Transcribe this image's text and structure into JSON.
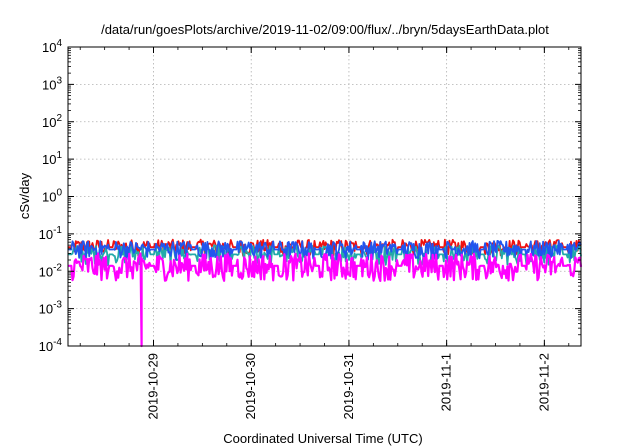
{
  "chart_data": {
    "type": "line",
    "title": "/data/run/goesPlots/archive/2019-11-02/09:00/flux/../bryn/5daysEarthData.plot",
    "xlabel": "Coordinated Universal Time (UTC)",
    "ylabel": "cSv/day",
    "yscale": "log",
    "ylim": [
      0.0001,
      10000
    ],
    "xlim": [
      "2019-10-28 03:00",
      "2019-11-02 09:00"
    ],
    "grid": true,
    "legend": "none",
    "x_ticks": [
      "2019-10-29",
      "2019-10-30",
      "2019-10-31",
      "2019-11-1",
      "2019-11-2"
    ],
    "y_ticks": [
      {
        "base": "10",
        "exp": "-4",
        "value": 0.0001
      },
      {
        "base": "10",
        "exp": "-3",
        "value": 0.001
      },
      {
        "base": "10",
        "exp": "-2",
        "value": 0.01
      },
      {
        "base": "10",
        "exp": "-1",
        "value": 0.1
      },
      {
        "base": "10",
        "exp": "0",
        "value": 1
      },
      {
        "base": "10",
        "exp": "1",
        "value": 10
      },
      {
        "base": "10",
        "exp": "2",
        "value": 100
      },
      {
        "base": "10",
        "exp": "3",
        "value": 1000
      },
      {
        "base": "10",
        "exp": "4",
        "value": 10000
      }
    ],
    "series": [
      {
        "color": "#ee1111",
        "low": 0.025,
        "high": 0.07,
        "dip_time": null
      },
      {
        "color": "#22aaaa",
        "low": 0.014,
        "high": 0.05,
        "dip_time": null
      },
      {
        "color": "#2255ee",
        "low": 0.02,
        "high": 0.065,
        "dip_time": null
      },
      {
        "color": "#ff00ff",
        "low": 0.0055,
        "high": 0.03,
        "dip_time": "2019-10-28 21:00",
        "dip_value": 0.0001
      }
    ]
  }
}
